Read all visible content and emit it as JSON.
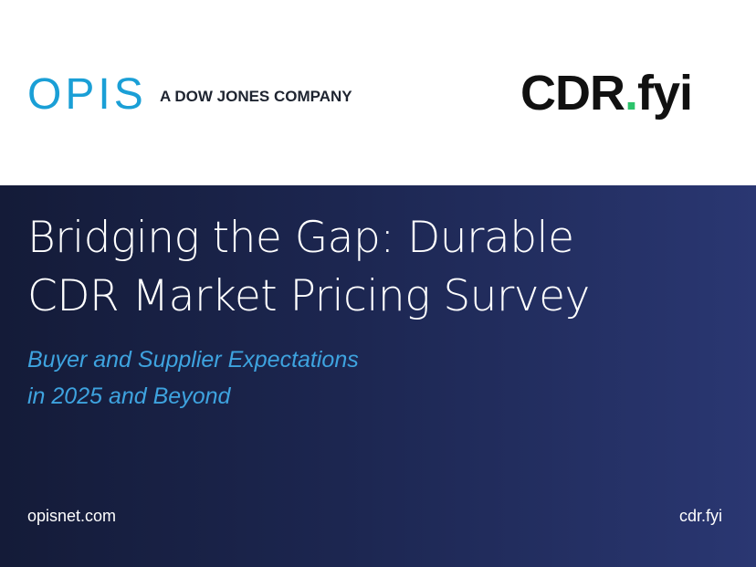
{
  "header": {
    "opis_logo": "OPIS",
    "opis_tagline": "A DOW JONES COMPANY",
    "cdr_logo": [
      "CDR",
      ".",
      "fyi"
    ]
  },
  "title": [
    "Bridging the Gap: Durable",
    "CDR Market Pricing Survey"
  ],
  "subtitle": [
    "Buyer and Supplier Expectations",
    "in 2025 and Beyond"
  ],
  "footer": {
    "left": "opisnet.com",
    "right": "cdr.fyi"
  }
}
